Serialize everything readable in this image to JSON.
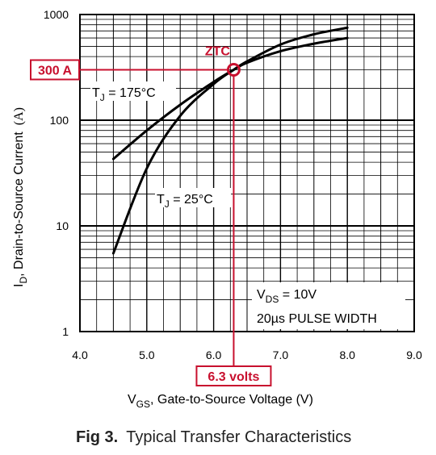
{
  "chart_data": {
    "type": "line",
    "title": "",
    "caption_bold": "Fig 3.",
    "caption_text": "Typical Transfer Characteristics",
    "xlabel_sub": "GS",
    "xlabel_rest": ", Gate-to-Source Voltage (V)",
    "xlabel_main": "V",
    "ylabel_main": "I",
    "ylabel_sub": "D",
    "ylabel_rest": ", Drain-to-Source Current",
    "ylabel_unit": "(A)",
    "x_ticks": [
      "4.0",
      "5.0",
      "6.0",
      "7.0",
      "8.0",
      "9.0"
    ],
    "y_ticks": [
      "1",
      "10",
      "100",
      "1000"
    ],
    "xlim": [
      4.0,
      9.0
    ],
    "ylim": [
      1,
      1000
    ],
    "y_scale": "log",
    "grid": true,
    "series": [
      {
        "name": "TJ = 175°C",
        "x": [
          4.5,
          5.0,
          5.5,
          6.0,
          6.3,
          6.5,
          7.0,
          7.5,
          8.0
        ],
        "y": [
          43,
          80,
          140,
          230,
          300,
          350,
          450,
          530,
          600
        ]
      },
      {
        "name": "TJ = 25°C",
        "x": [
          4.5,
          5.0,
          5.5,
          6.0,
          6.3,
          6.5,
          7.0,
          7.5,
          8.0
        ],
        "y": [
          5.5,
          35,
          110,
          220,
          300,
          360,
          520,
          650,
          750
        ]
      }
    ],
    "labels": {
      "tj175_main": "T",
      "tj175_sub": "J",
      "tj175_rest": " = 175°C",
      "tj25_main": "T",
      "tj25_sub": "J",
      "tj25_rest": " = 25°C",
      "vds_main": "V",
      "vds_sub": "DS",
      "vds_rest": " = 10V",
      "pulse": "20µs PULSE WIDTH"
    },
    "annotations": {
      "ztc_label": "ZTC",
      "ztc_x": 6.3,
      "ztc_y": 300,
      "y_callout": "300 A",
      "x_callout": "6.3 volts"
    },
    "colors": {
      "curve": "#000000",
      "annotation": "#c8102e",
      "caption": "#222222"
    }
  }
}
